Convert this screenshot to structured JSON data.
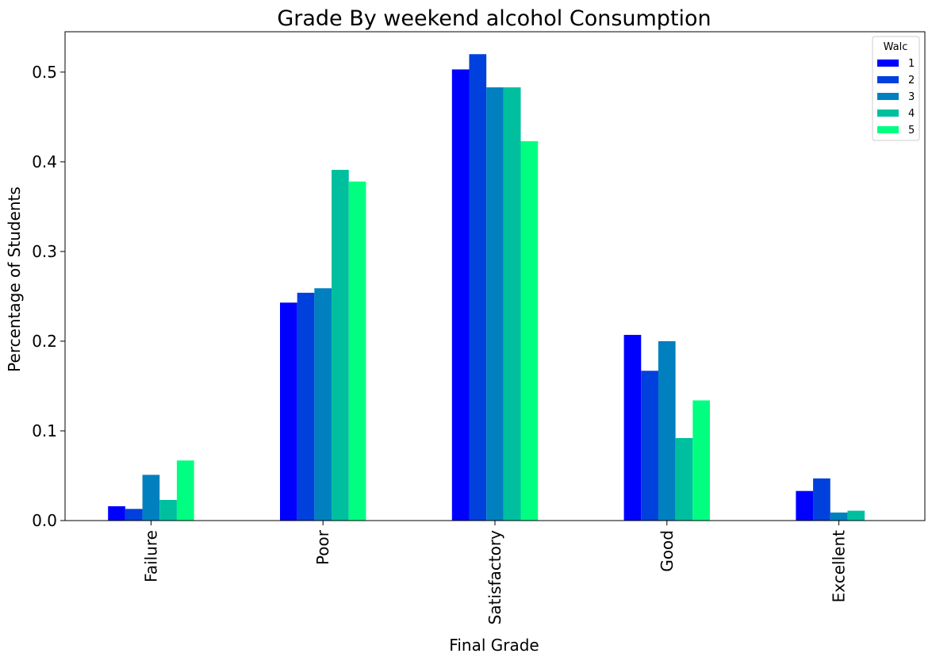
{
  "chart_data": {
    "type": "bar",
    "title": "Grade By weekend alcohol Consumption",
    "xlabel": "Final Grade",
    "ylabel": "Percentage of Students",
    "categories": [
      "Failure",
      "Poor",
      "Satisfactory",
      "Good",
      "Excellent"
    ],
    "ylim": [
      0,
      0.545
    ],
    "yticks": [
      "0.0",
      "0.1",
      "0.2",
      "0.3",
      "0.4",
      "0.5"
    ],
    "legend": {
      "title": "Walc",
      "placement": "top-right"
    },
    "grid": false,
    "series": [
      {
        "name": "1",
        "color": "#0000ff",
        "values": [
          0.016,
          0.243,
          0.503,
          0.207,
          0.033
        ]
      },
      {
        "name": "2",
        "color": "#0040dd",
        "values": [
          0.013,
          0.254,
          0.52,
          0.167,
          0.047
        ]
      },
      {
        "name": "3",
        "color": "#0080bf",
        "values": [
          0.051,
          0.259,
          0.483,
          0.2,
          0.009
        ]
      },
      {
        "name": "4",
        "color": "#00bf9f",
        "values": [
          0.023,
          0.391,
          0.483,
          0.092,
          0.011
        ]
      },
      {
        "name": "5",
        "color": "#00ff80",
        "values": [
          0.067,
          0.378,
          0.423,
          0.134,
          0.0
        ]
      }
    ]
  }
}
